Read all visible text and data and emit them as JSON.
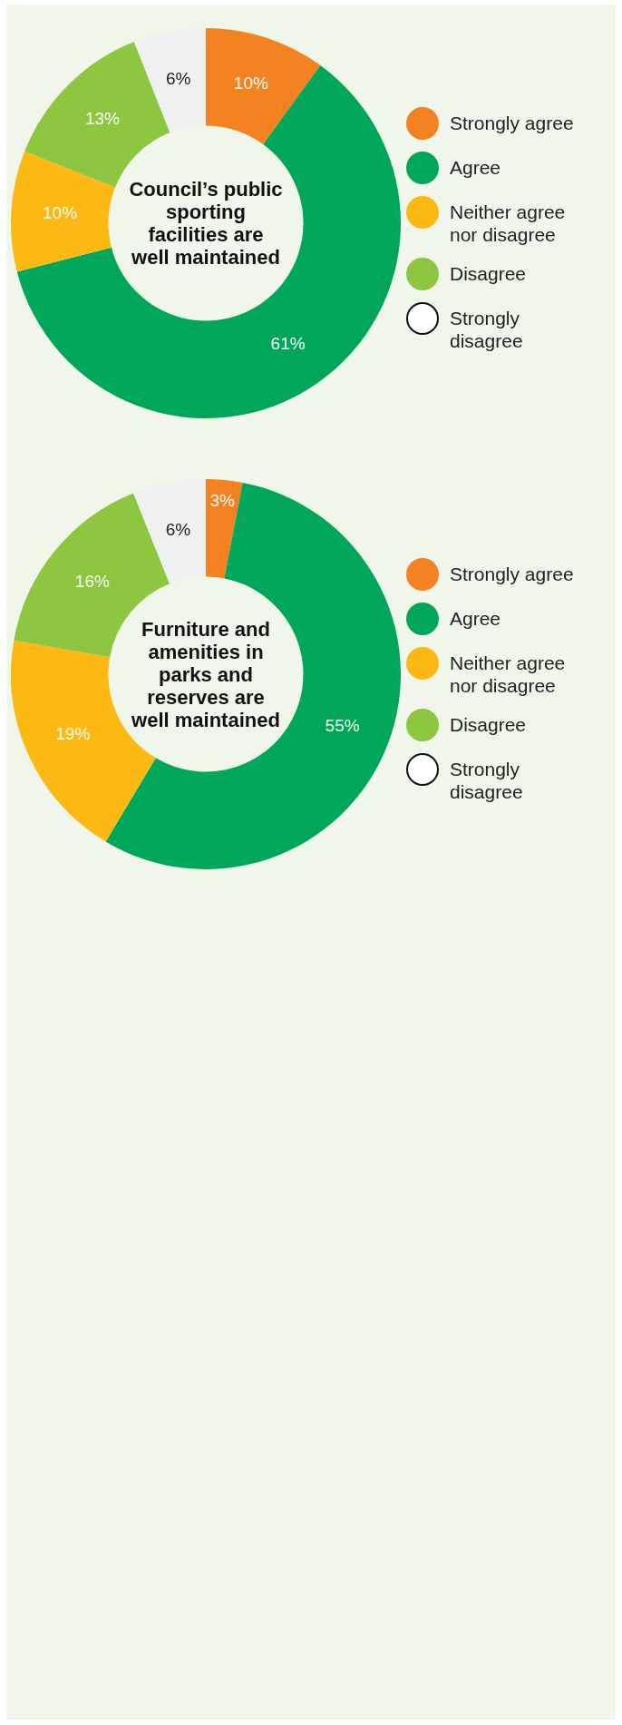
{
  "chart_data": [
    {
      "type": "donut",
      "title": "Council’s public sporting facilities are well maintained",
      "categories": [
        "Strongly agree",
        "Agree",
        "Neither agree nor disagree",
        "Disagree",
        "Strongly disagree"
      ],
      "values": [
        10,
        61,
        10,
        13,
        6
      ],
      "value_labels": [
        "10%",
        "61%",
        "10%",
        "13%",
        "6%"
      ],
      "colors": [
        "#f58220",
        "#00a65a",
        "#fdb913",
        "#8dc63f",
        "#eff1f1"
      ],
      "legend": "right"
    },
    {
      "type": "donut",
      "title": "Furniture and amenities in parks and reserves are well maintained",
      "categories": [
        "Strongly agree",
        "Agree",
        "Neither agree nor disagree",
        "Disagree",
        "Strongly disagree"
      ],
      "values": [
        3,
        55,
        19,
        16,
        6
      ],
      "value_labels": [
        "3%",
        "55%",
        "19%",
        "16%",
        "6%"
      ],
      "colors": [
        "#f58220",
        "#00a65a",
        "#fdb913",
        "#8dc63f",
        "#eff1f1"
      ],
      "legend": "right"
    }
  ]
}
